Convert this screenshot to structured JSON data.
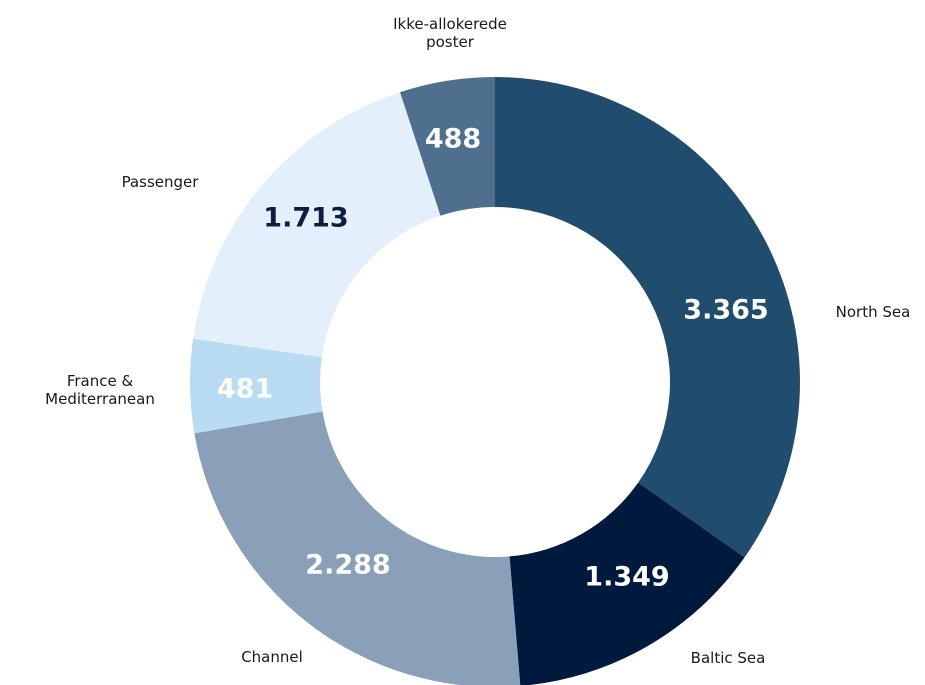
{
  "chart_data": {
    "type": "donut",
    "categories": [
      "North Sea",
      "Baltic Sea",
      "Channel",
      "France & Mediterranean",
      "Passenger",
      "Ikke-allokerede poster"
    ],
    "values": [
      3365,
      1349,
      2288,
      481,
      1713,
      488
    ],
    "value_labels": [
      "3.365",
      "1.349",
      "2.288",
      "481",
      "1.713",
      "488"
    ],
    "colors": [
      "#204d6e",
      "#001a3d",
      "#8a9fb8",
      "#b9dcf3",
      "#e3f0fb",
      "#4f6f8f"
    ]
  }
}
